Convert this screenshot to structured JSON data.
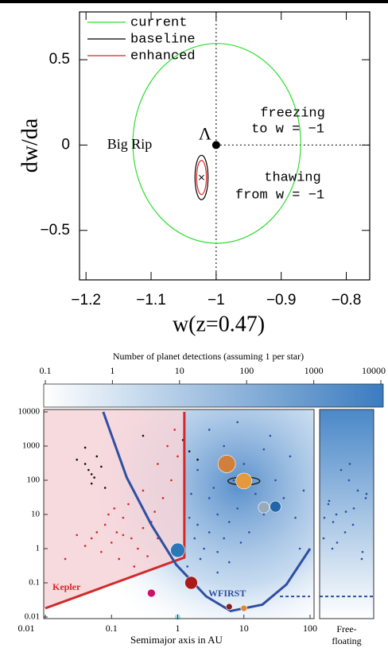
{
  "chart_data": [
    {
      "type": "contour",
      "ylabel": "dw/da",
      "xlabel": "w(z=0.47)",
      "xlim": [
        -1.21,
        -0.764
      ],
      "ylim": [
        -0.79,
        0.78
      ],
      "xticks": [
        {
          "value": -1.2,
          "label": "−1.2"
        },
        {
          "value": -1.1,
          "label": "−1.1"
        },
        {
          "value": -1,
          "label": "−1"
        },
        {
          "value": -0.9,
          "label": "−0.9"
        },
        {
          "value": -0.8,
          "label": "−0.8"
        }
      ],
      "yticks": [
        {
          "value": -0.5,
          "label": "−0.5"
        },
        0,
        0.5
      ],
      "legend": "upper left",
      "series": [
        {
          "name": "current",
          "color": "#33dd33",
          "center": [
            -0.999,
            0.01
          ],
          "radius": [
            0.129,
            0.585
          ]
        },
        {
          "name": "baseline",
          "color": "#000000",
          "center": [
            -1.0225,
            -0.19
          ],
          "radius": [
            0.01,
            0.13
          ]
        },
        {
          "name": "enhanced",
          "color": "#dd2222",
          "center": [
            -1.0225,
            -0.19
          ],
          "radius": [
            0.0075,
            0.1
          ]
        }
      ],
      "fiducial": {
        "label": "Λ",
        "x": -1,
        "y": 0
      },
      "annotations": [
        "Big Rip",
        "freezing",
        "to w = −1",
        "thawing",
        "from w = −1"
      ]
    },
    {
      "type": "scatter",
      "colorbar_title": "Number of planet detections (assuming 1 per star)",
      "colorbar_lim": [
        0.1,
        10000
      ],
      "colorbar_ticks": [
        0.1,
        1,
        10,
        100,
        1000,
        10000
      ],
      "colorbar_colors": [
        "#ffffff",
        "#3a7cc0"
      ],
      "xlabel": "Semimajor axis in AU",
      "xscale": "log",
      "yscale": "log",
      "xlim": [
        0.01,
        100
      ],
      "ylim": [
        0.01,
        10000
      ],
      "xticks": [
        0.01,
        0.1,
        1,
        10,
        100
      ],
      "yticks": [
        0.01,
        0.1,
        1,
        10,
        100,
        1000,
        10000
      ],
      "series": [
        {
          "kind": "points",
          "color": "#e02020",
          "x": [
            0.05,
            0.08,
            0.1,
            0.12,
            0.15,
            0.07,
            0.2,
            0.3,
            0.25,
            0.06,
            0.04,
            0.09,
            0.18,
            0.4,
            0.5,
            0.35,
            0.13,
            0.03,
            0.6,
            0.8,
            0.5,
            0.7,
            0.9,
            1,
            0.3,
            0.02,
            0.11,
            0.22,
            0.45,
            0.15
          ],
          "values": [
            2,
            5,
            1.5,
            3,
            8,
            0.8,
            2,
            4,
            1,
            3,
            1.2,
            10,
            20,
            6,
            2,
            0.6,
            0.5,
            2.5,
            30,
            100,
            300,
            1000,
            3000,
            500,
            50,
            0.5,
            15,
            0.3,
            12,
            2.5
          ]
        },
        {
          "kind": "points",
          "color": "#111111",
          "x": [
            0.04,
            0.05,
            0.06,
            0.05,
            0.045,
            0.03,
            0.07,
            0.055,
            0.04,
            0.08,
            1.5,
            2,
            1.2,
            0.3,
            10
          ],
          "values": [
            300,
            150,
            500,
            80,
            200,
            400,
            250,
            120,
            900,
            60,
            700,
            400,
            1500,
            2000,
            60
          ]
        },
        {
          "kind": "points",
          "color": "#2a4fa8",
          "x": [
            2,
            3,
            4,
            5,
            1.5,
            2.5,
            3,
            6,
            8,
            1.8,
            4,
            3.5,
            7,
            10,
            5,
            2,
            15,
            20,
            30,
            50,
            12,
            2.2,
            6,
            4,
            9,
            25,
            40,
            60,
            80,
            1.6,
            3,
            8,
            20,
            70,
            1.4
          ],
          "values": [
            5,
            3,
            10,
            2,
            8,
            1,
            30,
            6,
            15,
            2,
            0.8,
            60,
            100,
            300,
            1000,
            200,
            40,
            10,
            100,
            500,
            3,
            0.5,
            0.4,
            0.2,
            1.5,
            2000,
            30,
            8,
            50,
            40,
            3000,
            5000,
            800,
            1,
            0.3
          ]
        },
        {
          "kind": "line",
          "name": "Kepler",
          "color": "#d22a2a",
          "x": [
            0.01,
            1.26,
            1.26
          ],
          "values": [
            0.018,
            0.55,
            10000
          ]
        },
        {
          "kind": "line",
          "name": "WFIRST",
          "color": "#2f4fa0",
          "x": [
            0.075,
            0.17,
            0.4,
            0.95,
            2.7,
            6.3,
            19,
            44,
            100
          ],
          "values": [
            10000,
            120,
            5,
            0.34,
            0.04,
            0.015,
            0.023,
            0.09,
            1
          ]
        },
        {
          "kind": "dashed",
          "color": "#2f4fa0",
          "x": [
            35,
            100
          ],
          "values": [
            0.04,
            0.04
          ]
        }
      ],
      "planets": {
        "x": [
          0.4,
          1,
          1.6,
          1,
          5.5,
          10,
          20,
          30,
          6,
          10
        ],
        "values": [
          0.05,
          0.9,
          0.1,
          0.01,
          300,
          95,
          16,
          17,
          0.02,
          0.018
        ],
        "colors": [
          "#cc1166",
          "#2a78b8",
          "#aa1a1a",
          "#aaddee",
          "#d0803c",
          "#e49a3c",
          "#99aabb",
          "#2266aa",
          "#882222",
          "#dd8833"
        ]
      },
      "free_floating": {
        "label_lines": [
          "Free-",
          "floating"
        ],
        "values": [
          2,
          5,
          10,
          30,
          100,
          1,
          0.5,
          3,
          20,
          50,
          200,
          8,
          15,
          1.5,
          40,
          300,
          6,
          0.8,
          12,
          25
        ]
      }
    }
  ]
}
